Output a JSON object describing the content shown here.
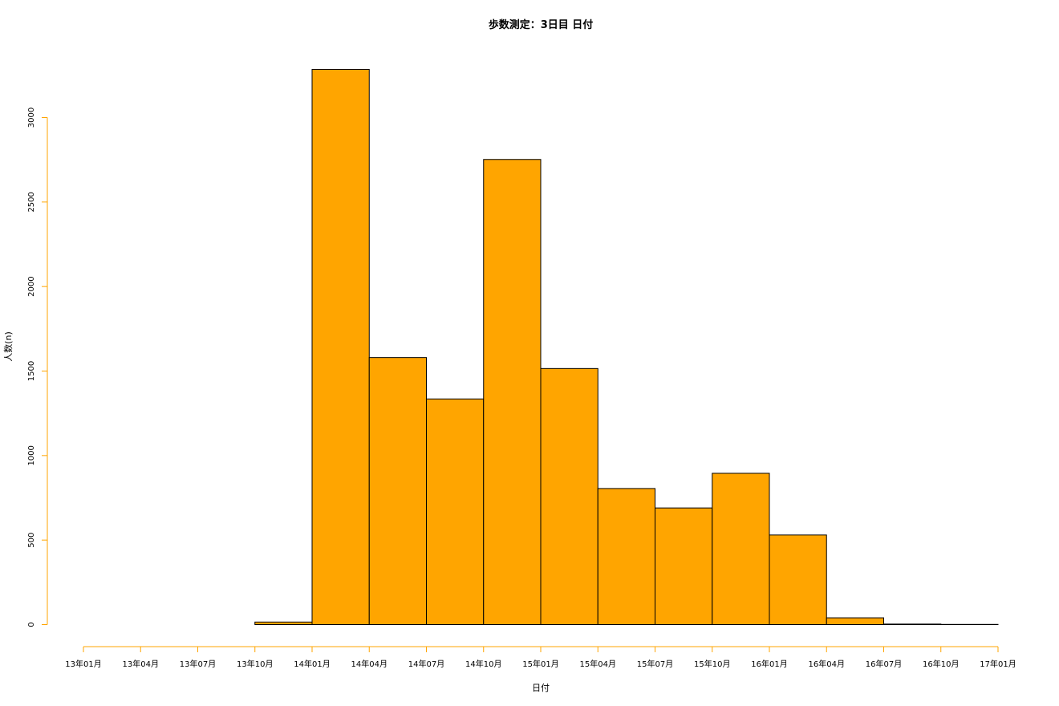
{
  "chart_data": {
    "type": "bar",
    "title": "歩数測定：3日目 日付",
    "xlabel": "日付",
    "ylabel": "人数(n)",
    "x_ticks": [
      "13年01月",
      "13年04月",
      "13年07月",
      "13年10月",
      "14年01月",
      "14年04月",
      "14年07月",
      "14年10月",
      "15年01月",
      "15年04月",
      "15年07月",
      "15年10月",
      "16年01月",
      "16年04月",
      "16年07月",
      "16年10月",
      "17年01月"
    ],
    "y_ticks": [
      "0",
      "500",
      "1000",
      "1500",
      "2000",
      "2500",
      "3000"
    ],
    "ylim": [
      0,
      3300
    ],
    "bins": [
      {
        "from": "13年01月",
        "to": "13年04月",
        "value": 0
      },
      {
        "from": "13年04月",
        "to": "13年07月",
        "value": 0
      },
      {
        "from": "13年07月",
        "to": "13年10月",
        "value": 0
      },
      {
        "from": "13年10月",
        "to": "14年01月",
        "value": 15
      },
      {
        "from": "14年01月",
        "to": "14年04月",
        "value": 3285
      },
      {
        "from": "14年04月",
        "to": "14年07月",
        "value": 1580
      },
      {
        "from": "14年07月",
        "to": "14年10月",
        "value": 1335
      },
      {
        "from": "14年10月",
        "to": "15年01月",
        "value": 2752
      },
      {
        "from": "15年01月",
        "to": "15年04月",
        "value": 1515
      },
      {
        "from": "15年04月",
        "to": "15年07月",
        "value": 805
      },
      {
        "from": "15年07月",
        "to": "15年10月",
        "value": 690
      },
      {
        "from": "15年10月",
        "to": "16年01月",
        "value": 895
      },
      {
        "from": "16年01月",
        "to": "16年04月",
        "value": 530
      },
      {
        "from": "16年04月",
        "to": "16年07月",
        "value": 40
      },
      {
        "from": "16年07月",
        "to": "16年10月",
        "value": 3
      },
      {
        "from": "16年10月",
        "to": "17年01月",
        "value": 1
      }
    ],
    "bar_color": "#FFA500",
    "bar_border_color": "#000000",
    "axis_color": "#FFA500",
    "grid": false,
    "legend": "none"
  }
}
